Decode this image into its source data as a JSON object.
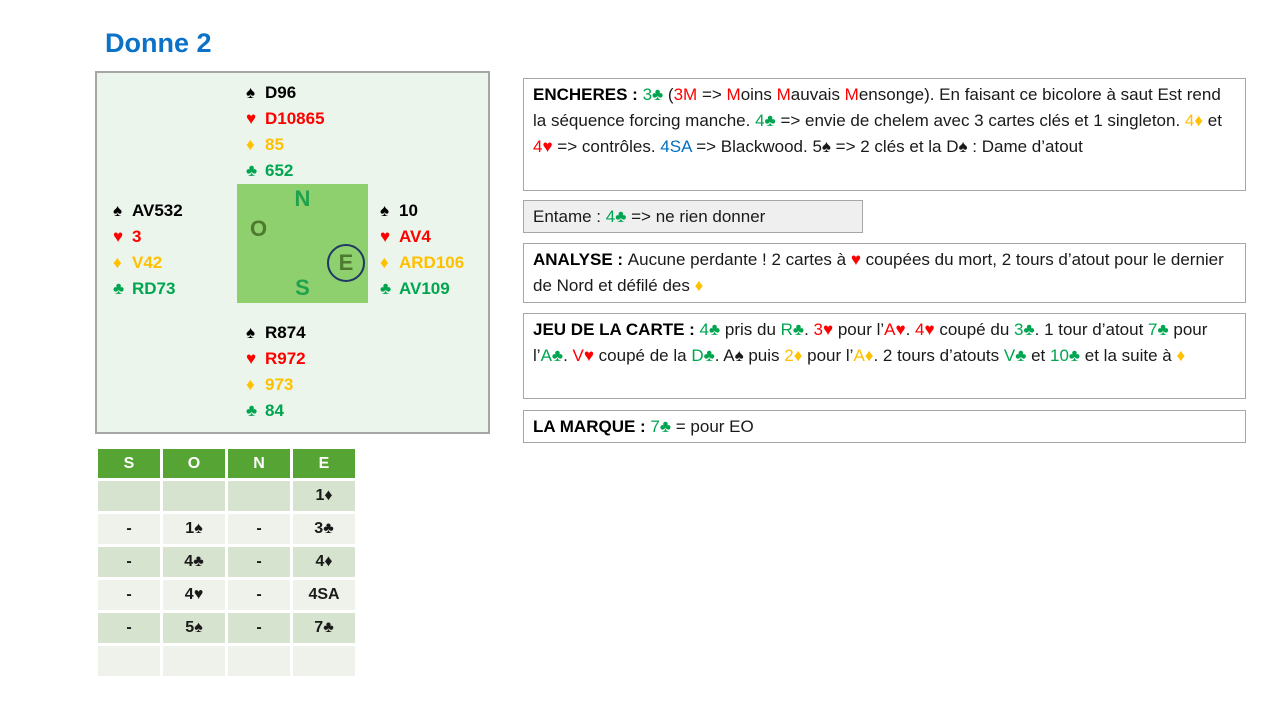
{
  "title": "Donne 2",
  "colors": {
    "green": "#00A550",
    "red": "#FF0000",
    "gold": "#FFC000",
    "blue": "#0070C0",
    "title": "#0B72C8",
    "table_header": "#56A433",
    "band_dark": "#D6E3CE",
    "band_light": "#EFF2EB",
    "square": "#8FD06E",
    "diagram_bg": "#ECF5EC",
    "compass_light": "#21A14D",
    "compass_dark": "#4D7A2E",
    "circle": "#1F3864",
    "border_gray": "#A6A6A6",
    "entame_bg": "#EFEFEF"
  },
  "suit_symbols": {
    "spade": "♠",
    "heart": "♥",
    "diamond": "♦",
    "club": "♣"
  },
  "suit_colors": {
    "spade": "black",
    "heart": "red",
    "diamond": "gold",
    "club": "green"
  },
  "diagram": {
    "compass": {
      "north": "N",
      "west": "O",
      "east": "E",
      "south": "S"
    },
    "hands": {
      "north": {
        "lines": [
          {
            "suit": "spade",
            "cards": "D96"
          },
          {
            "suit": "heart",
            "cards": "D10865"
          },
          {
            "suit": "diamond",
            "cards": "85"
          },
          {
            "suit": "club",
            "cards": "652"
          }
        ]
      },
      "west": {
        "lines": [
          {
            "suit": "spade",
            "cards": "AV532"
          },
          {
            "suit": "heart",
            "cards": "3"
          },
          {
            "suit": "diamond",
            "cards": "V42"
          },
          {
            "suit": "club",
            "cards": "RD73"
          }
        ]
      },
      "east": {
        "lines": [
          {
            "suit": "spade",
            "cards": "10"
          },
          {
            "suit": "heart",
            "cards": "AV4"
          },
          {
            "suit": "diamond",
            "cards": "ARD106"
          },
          {
            "suit": "club",
            "cards": "AV109"
          }
        ]
      },
      "south": {
        "lines": [
          {
            "suit": "spade",
            "cards": "R874"
          },
          {
            "suit": "heart",
            "cards": "R972"
          },
          {
            "suit": "diamond",
            "cards": "973"
          },
          {
            "suit": "club",
            "cards": "84"
          }
        ]
      }
    }
  },
  "bidding": {
    "headers": [
      "S",
      "O",
      "N",
      "E"
    ],
    "rows": [
      [
        {
          "t": ""
        },
        {
          "t": ""
        },
        {
          "t": ""
        },
        {
          "t": "1♦",
          "c": "gold"
        }
      ],
      [
        {
          "t": "-"
        },
        {
          "t": "1♠",
          "c": "black"
        },
        {
          "t": "-"
        },
        {
          "t": "3♣",
          "c": "green"
        }
      ],
      [
        {
          "t": "-"
        },
        {
          "t": "4♣",
          "c": "green"
        },
        {
          "t": "-"
        },
        {
          "t": "4♦",
          "c": "gold"
        }
      ],
      [
        {
          "t": "-"
        },
        {
          "t": "4♥",
          "c": "red"
        },
        {
          "t": "-"
        },
        {
          "t": "4SA",
          "c": "blue"
        }
      ],
      [
        {
          "t": "-"
        },
        {
          "t": "5♠",
          "c": "black"
        },
        {
          "t": "-"
        },
        {
          "t": "7♣",
          "c": "green"
        }
      ],
      [
        {
          "t": ""
        },
        {
          "t": ""
        },
        {
          "t": ""
        },
        {
          "t": ""
        }
      ]
    ]
  },
  "boxes": {
    "encheres": {
      "segments": [
        {
          "t": "ENCHERES : ",
          "b": true
        },
        {
          "t": "3♣",
          "c": "green"
        },
        {
          "t": " ("
        },
        {
          "t": "3M",
          "c": "red"
        },
        {
          "t": " => "
        },
        {
          "t": "M",
          "c": "red"
        },
        {
          "t": "oins "
        },
        {
          "t": "M",
          "c": "red"
        },
        {
          "t": "auvais "
        },
        {
          "t": "M",
          "c": "red"
        },
        {
          "t": "ensonge). En faisant ce bicolore à saut Est rend la séquence forcing manche. "
        },
        {
          "t": "4♣",
          "c": "green"
        },
        {
          "t": " => envie de chelem avec 3 cartes clés et 1 singleton. "
        },
        {
          "t": "4♦",
          "c": "gold"
        },
        {
          "t": " et "
        },
        {
          "t": "4♥",
          "c": "red"
        },
        {
          "t": " => contrôles. "
        },
        {
          "t": "4SA",
          "c": "blue"
        },
        {
          "t": " => Blackwood. 5♠ => 2 clés et la D♠ : Dame d’atout"
        }
      ]
    },
    "entame": {
      "segments": [
        {
          "t": "Entame : "
        },
        {
          "t": "4♣",
          "c": "green"
        },
        {
          "t": " => ne rien donner"
        }
      ]
    },
    "analyse": {
      "segments": [
        {
          "t": "ANALYSE : ",
          "b": true
        },
        {
          "t": "Aucune perdante ! 2 cartes à "
        },
        {
          "t": "♥",
          "c": "red"
        },
        {
          "t": " coupées du mort, 2 tours d’atout pour le dernier de Nord et défilé des "
        },
        {
          "t": "♦",
          "c": "gold"
        }
      ]
    },
    "jeu": {
      "segments": [
        {
          "t": "JEU DE LA CARTE : ",
          "b": true
        },
        {
          "t": "4♣",
          "c": "green"
        },
        {
          "t": " pris du "
        },
        {
          "t": "R♣",
          "c": "green"
        },
        {
          "t": ". "
        },
        {
          "t": "3♥",
          "c": "red"
        },
        {
          "t": " pour l’"
        },
        {
          "t": "A♥",
          "c": "red"
        },
        {
          "t": ". "
        },
        {
          "t": "4♥",
          "c": "red"
        },
        {
          "t": " coupé du "
        },
        {
          "t": "3♣",
          "c": "green"
        },
        {
          "t": ". 1 tour d’atout "
        },
        {
          "t": "7♣",
          "c": "green"
        },
        {
          "t": " pour l’"
        },
        {
          "t": "A♣",
          "c": "green"
        },
        {
          "t": ". "
        },
        {
          "t": "V♥",
          "c": "red"
        },
        {
          "t": " coupé de la "
        },
        {
          "t": "D♣",
          "c": "green"
        },
        {
          "t": ". A♠ puis "
        },
        {
          "t": "2♦",
          "c": "gold"
        },
        {
          "t": " pour l’"
        },
        {
          "t": "A♦",
          "c": "gold"
        },
        {
          "t": ". 2 tours d’atouts "
        },
        {
          "t": "V♣",
          "c": "green"
        },
        {
          "t": " et "
        },
        {
          "t": "10♣",
          "c": "green"
        },
        {
          "t": " et la suite à "
        },
        {
          "t": "♦",
          "c": "gold"
        }
      ]
    },
    "marque": {
      "segments": [
        {
          "t": "LA MARQUE : ",
          "b": true
        },
        {
          "t": "7♣",
          "c": "green"
        },
        {
          "t": " = pour EO"
        }
      ]
    }
  }
}
